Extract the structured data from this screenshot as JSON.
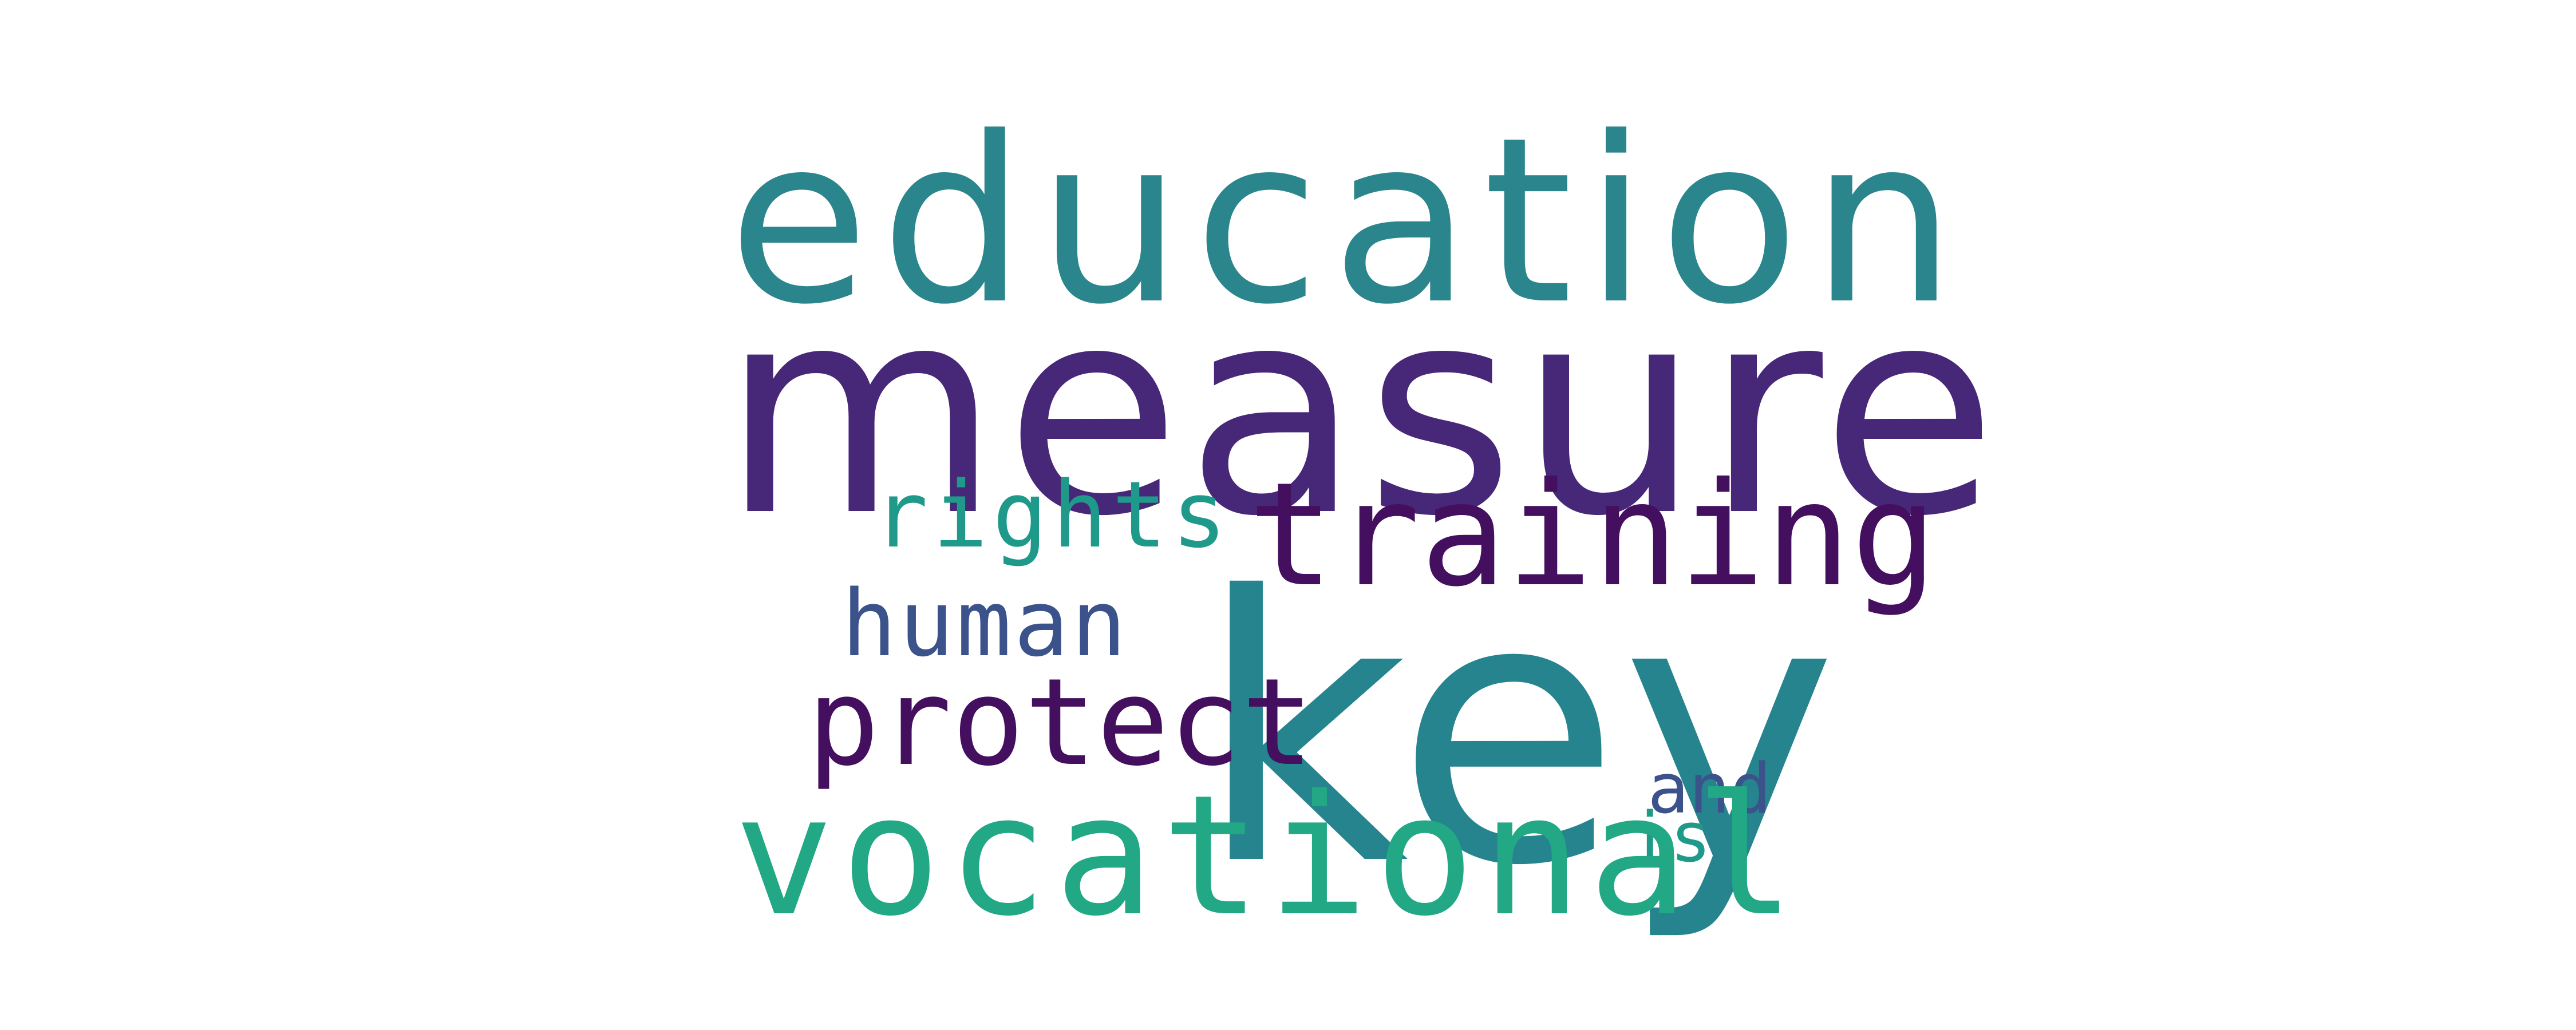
{
  "words": {
    "education": {
      "text": "education",
      "color": "#2a868c"
    },
    "measure": {
      "text": "measure",
      "color": "#472777"
    },
    "rights": {
      "text": "rights",
      "color": "#1f9a8a"
    },
    "training": {
      "text": "training",
      "color": "#440f5e"
    },
    "human": {
      "text": "human",
      "color": "#3b528b"
    },
    "key": {
      "text": "key",
      "color": "#26848e"
    },
    "protect": {
      "text": "protect",
      "color": "#440f5e"
    },
    "and": {
      "text": "and",
      "color": "#3b528b"
    },
    "is": {
      "text": "is",
      "color": "#1f9a8a"
    },
    "vocational": {
      "text": "vocational",
      "color": "#22a884"
    }
  }
}
